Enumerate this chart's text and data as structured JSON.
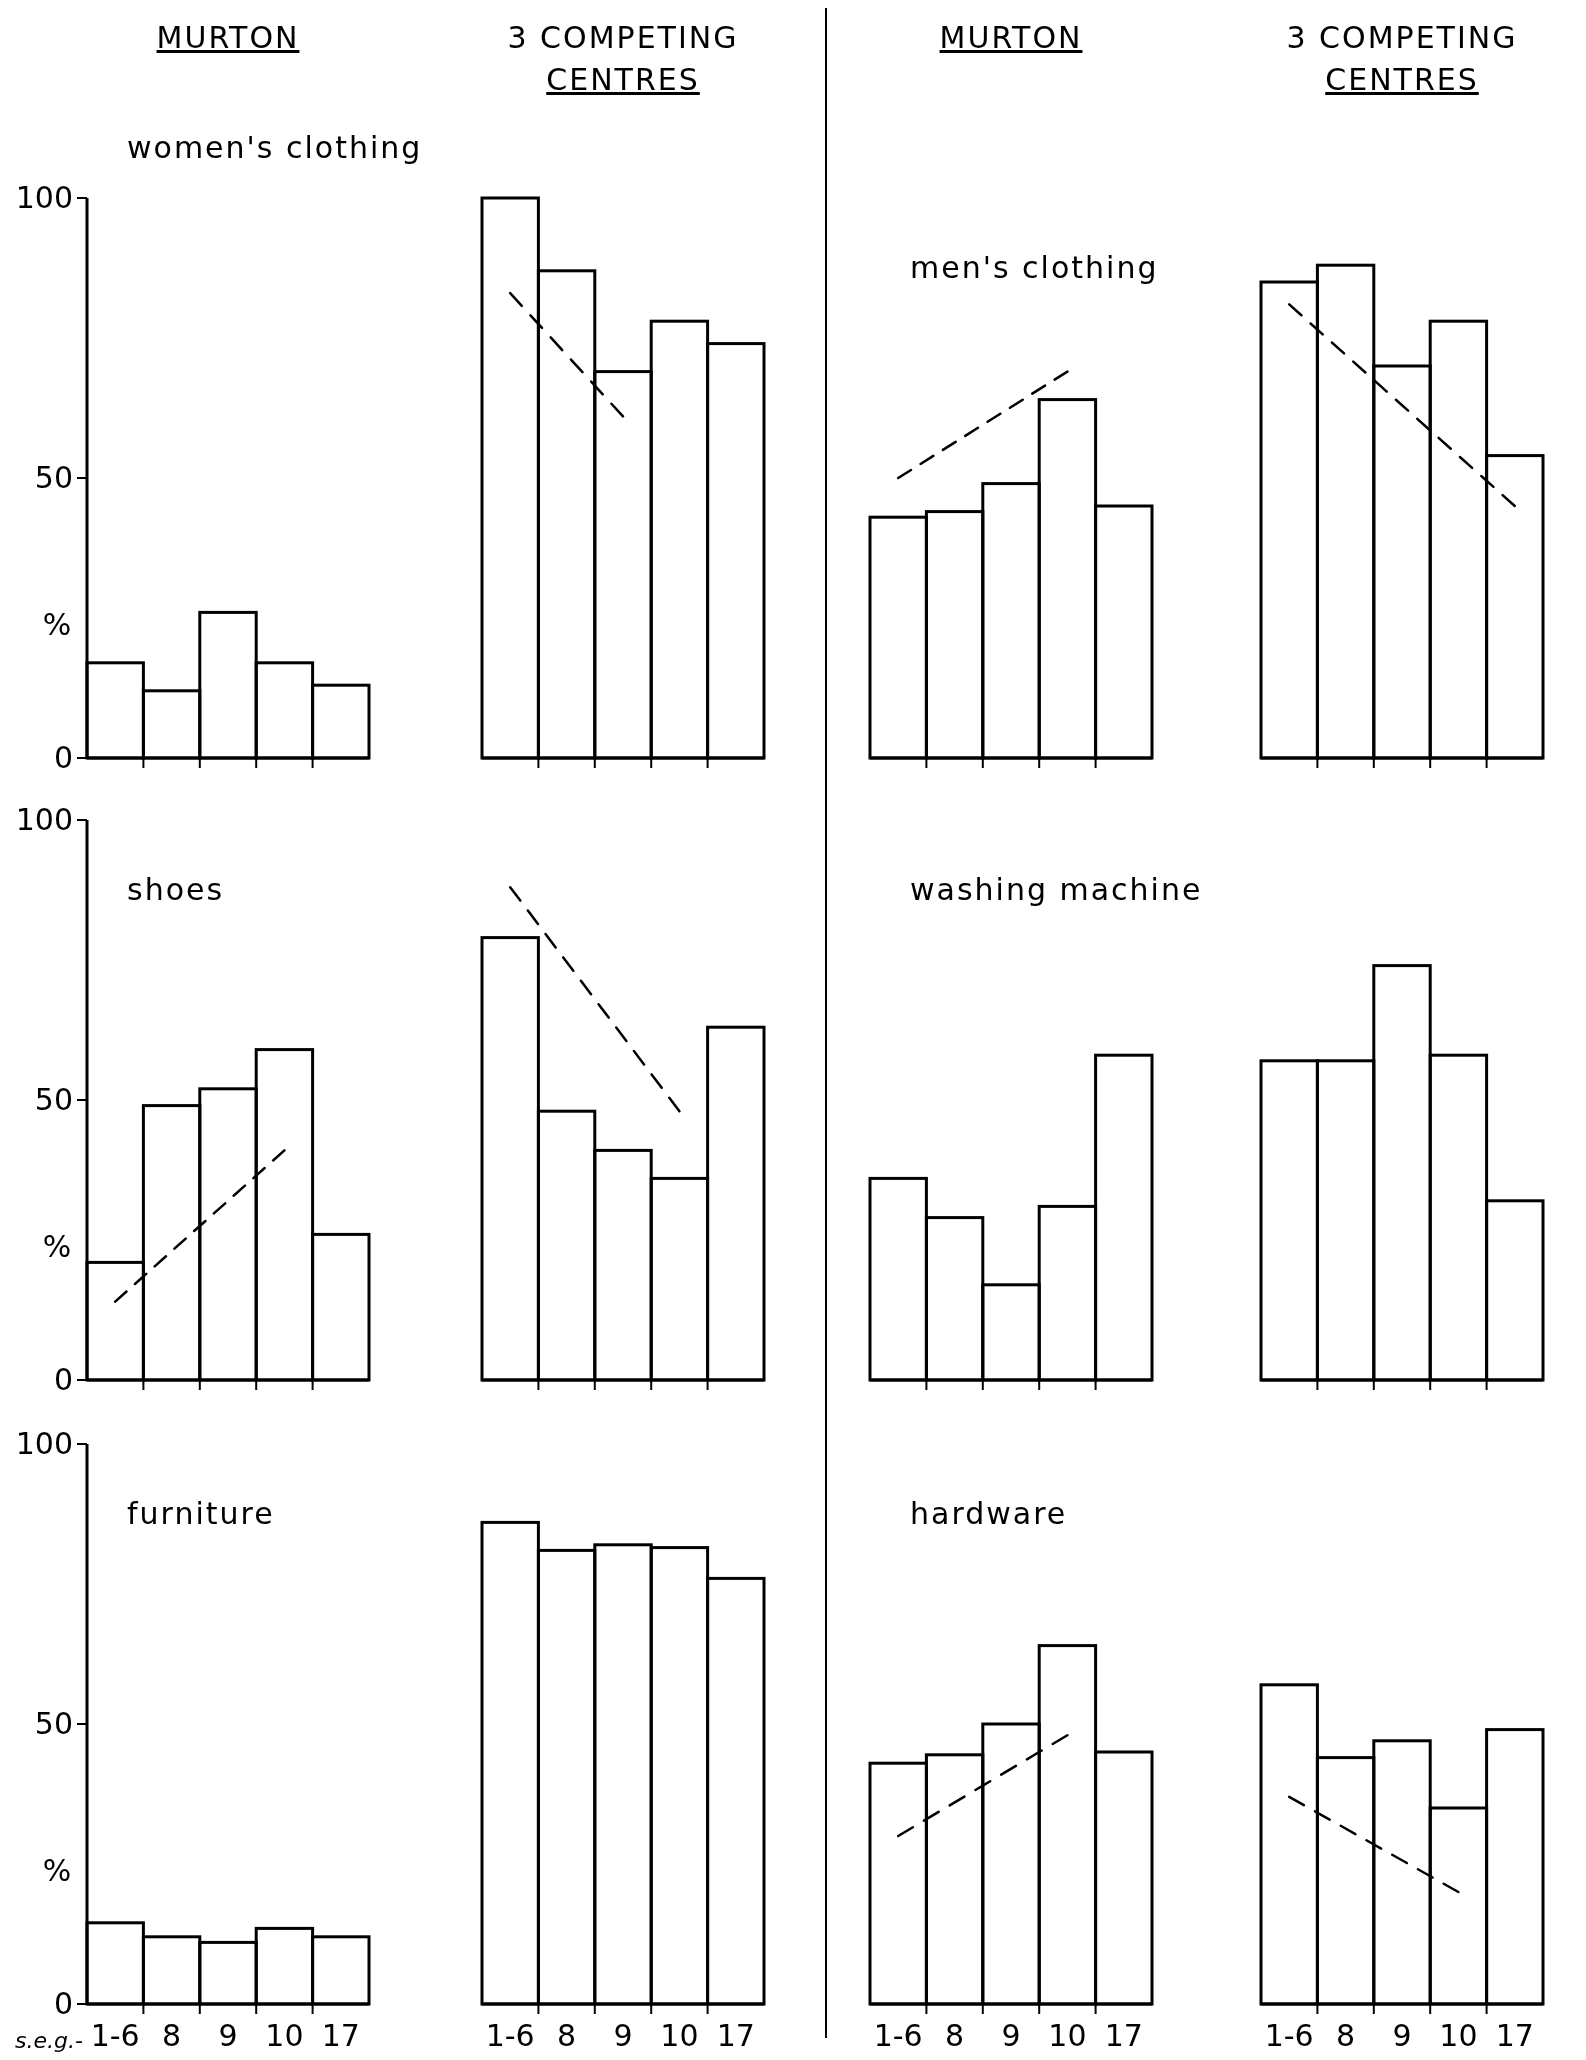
{
  "chart_data": [
    {
      "type": "bar",
      "title": "MURTON",
      "subtitle": "women's clothing",
      "ylabel": "%",
      "categories": [
        "1-6",
        "8",
        "9",
        "10",
        "17"
      ],
      "ylim": [
        0,
        100
      ],
      "yticks": [
        0,
        50,
        100
      ],
      "tick_labels": "y",
      "series": [
        {
          "color": "#000000",
          "values": [
            17,
            12,
            26,
            17,
            13
          ]
        }
      ]
    },
    {
      "type": "bar",
      "title": "3 COMPETING CENTRES",
      "categories": [
        "1-6",
        "8",
        "9",
        "10",
        "17"
      ],
      "ylim": [
        0,
        100
      ],
      "tick_labels": false,
      "series": [
        {
          "color": "#000000",
          "values": [
            100,
            87,
            69,
            78,
            74
          ]
        },
        {
          "type": "line",
          "x": [
            "1-6",
            "9"
          ],
          "values": [
            83,
            61
          ],
          "color": "#000000",
          "line_style": "dashed"
        }
      ]
    },
    {
      "type": "bar",
      "title": "MURTON",
      "subtitle": "men's clothing",
      "categories": [
        "1-6",
        "8",
        "9",
        "10",
        "17"
      ],
      "ylim": [
        0,
        100
      ],
      "tick_labels": false,
      "series": [
        {
          "color": "#000000",
          "values": [
            43,
            44,
            49,
            64,
            45
          ]
        },
        {
          "type": "line",
          "x": [
            "1-6",
            "10"
          ],
          "values": [
            50,
            69
          ],
          "color": "#000000",
          "line_style": "dashed"
        }
      ]
    },
    {
      "type": "bar",
      "title": "3 COMPETING CENTRES",
      "categories": [
        "1-6",
        "8",
        "9",
        "10",
        "17"
      ],
      "ylim": [
        0,
        100
      ],
      "tick_labels": false,
      "series": [
        {
          "color": "#000000",
          "values": [
            85,
            88,
            70,
            78,
            54
          ]
        },
        {
          "type": "line",
          "x": [
            "1-6",
            "17"
          ],
          "values": [
            81,
            45
          ],
          "color": "#000000",
          "line_style": "dashed"
        }
      ]
    },
    {
      "type": "bar",
      "title": "shoes",
      "ylabel": "%",
      "categories": [
        "1-6",
        "8",
        "9",
        "10",
        "17"
      ],
      "ylim": [
        0,
        100
      ],
      "yticks": [
        0,
        50,
        100
      ],
      "tick_labels": "y",
      "series": [
        {
          "color": "#000000",
          "values": [
            21,
            49,
            52,
            59,
            26
          ]
        },
        {
          "type": "line",
          "x": [
            "1-6",
            "10"
          ],
          "values": [
            14,
            41
          ],
          "color": "#000000",
          "line_style": "dashed"
        }
      ]
    },
    {
      "type": "bar",
      "categories": [
        "1-6",
        "8",
        "9",
        "10",
        "17"
      ],
      "ylim": [
        0,
        100
      ],
      "tick_labels": false,
      "series": [
        {
          "color": "#000000",
          "values": [
            79,
            48,
            41,
            36,
            63
          ]
        },
        {
          "type": "line",
          "x": [
            "1-6",
            "10"
          ],
          "values": [
            88,
            48
          ],
          "color": "#000000",
          "line_style": "dashed"
        }
      ]
    },
    {
      "type": "bar",
      "title": "washing machine",
      "categories": [
        "1-6",
        "8",
        "9",
        "10",
        "17"
      ],
      "ylim": [
        0,
        100
      ],
      "tick_labels": false,
      "series": [
        {
          "color": "#000000",
          "values": [
            36,
            29,
            17,
            31,
            58
          ]
        }
      ]
    },
    {
      "type": "bar",
      "categories": [
        "1-6",
        "8",
        "9",
        "10",
        "17"
      ],
      "ylim": [
        0,
        100
      ],
      "tick_labels": false,
      "series": [
        {
          "color": "#000000",
          "values": [
            57,
            57,
            74,
            58,
            32
          ]
        }
      ]
    },
    {
      "type": "bar",
      "title": "furniture",
      "ylabel": "%",
      "xlabel": "s.e.g.-",
      "categories": [
        "1-6",
        "8",
        "9",
        "10",
        "17"
      ],
      "ylim": [
        0,
        100
      ],
      "yticks": [
        0,
        50,
        100
      ],
      "series": [
        {
          "color": "#000000",
          "values": [
            14.5,
            12,
            11,
            13.5,
            12
          ]
        }
      ]
    },
    {
      "type": "bar",
      "categories": [
        "1-6",
        "8",
        "9",
        "10",
        "17"
      ],
      "ylim": [
        0,
        100
      ],
      "tick_labels": "x",
      "series": [
        {
          "color": "#000000",
          "values": [
            86,
            81,
            82,
            81.5,
            76
          ]
        }
      ]
    },
    {
      "type": "bar",
      "title": "hardware",
      "categories": [
        "1-6",
        "8",
        "9",
        "10",
        "17"
      ],
      "ylim": [
        0,
        100
      ],
      "tick_labels": "x",
      "series": [
        {
          "color": "#000000",
          "values": [
            43,
            44.5,
            50,
            64,
            45
          ]
        },
        {
          "type": "line",
          "x": [
            "1-6",
            "10"
          ],
          "values": [
            30,
            48
          ],
          "color": "#000000",
          "line_style": "dashed"
        }
      ]
    },
    {
      "type": "bar",
      "categories": [
        "1-6",
        "8",
        "9",
        "10",
        "17"
      ],
      "ylim": [
        0,
        100
      ],
      "tick_labels": "x",
      "series": [
        {
          "color": "#000000",
          "values": [
            57,
            44,
            47,
            35,
            49
          ]
        },
        {
          "type": "line",
          "x": [
            "1-6",
            "10"
          ],
          "values": [
            37,
            20
          ],
          "color": "#000000",
          "line_style": "dashed"
        }
      ]
    }
  ]
}
